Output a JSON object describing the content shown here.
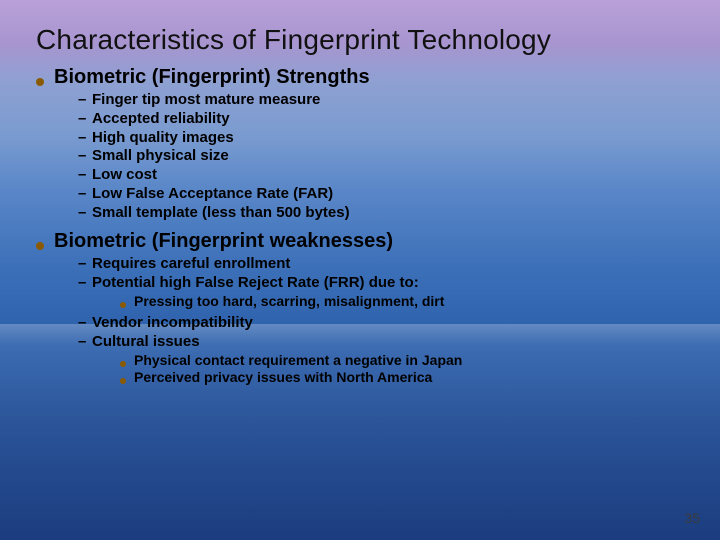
{
  "colors": {
    "bullet_dot": "#8a5a00",
    "dash": "#000000",
    "text": "#000000",
    "title": "#111111"
  },
  "title": "Characteristics of Fingerprint Technology",
  "sections": [
    {
      "heading": "Biometric (Fingerprint) Strengths",
      "subs": [
        {
          "text": "Finger tip most mature measure"
        },
        {
          "text": "Accepted reliability"
        },
        {
          "text": "High quality images"
        },
        {
          "text": "Small physical size"
        },
        {
          "text": "Low cost"
        },
        {
          "text": "Low False Acceptance Rate (FAR)"
        },
        {
          "text": "Small template (less than 500 bytes)"
        }
      ]
    },
    {
      "heading": "Biometric (Fingerprint weaknesses)",
      "subs": [
        {
          "text": "Requires careful enrollment"
        },
        {
          "text": "Potential high False Reject Rate (FRR) due to:",
          "subsubs": [
            {
              "text": "Pressing too hard, scarring, misalignment, dirt"
            }
          ]
        },
        {
          "text": "Vendor incompatibility"
        },
        {
          "text": "Cultural issues",
          "subsubs": [
            {
              "text": "Physical contact requirement a negative in Japan"
            },
            {
              "text": "Perceived privacy issues with North America"
            }
          ]
        }
      ]
    }
  ],
  "page_number": "35"
}
